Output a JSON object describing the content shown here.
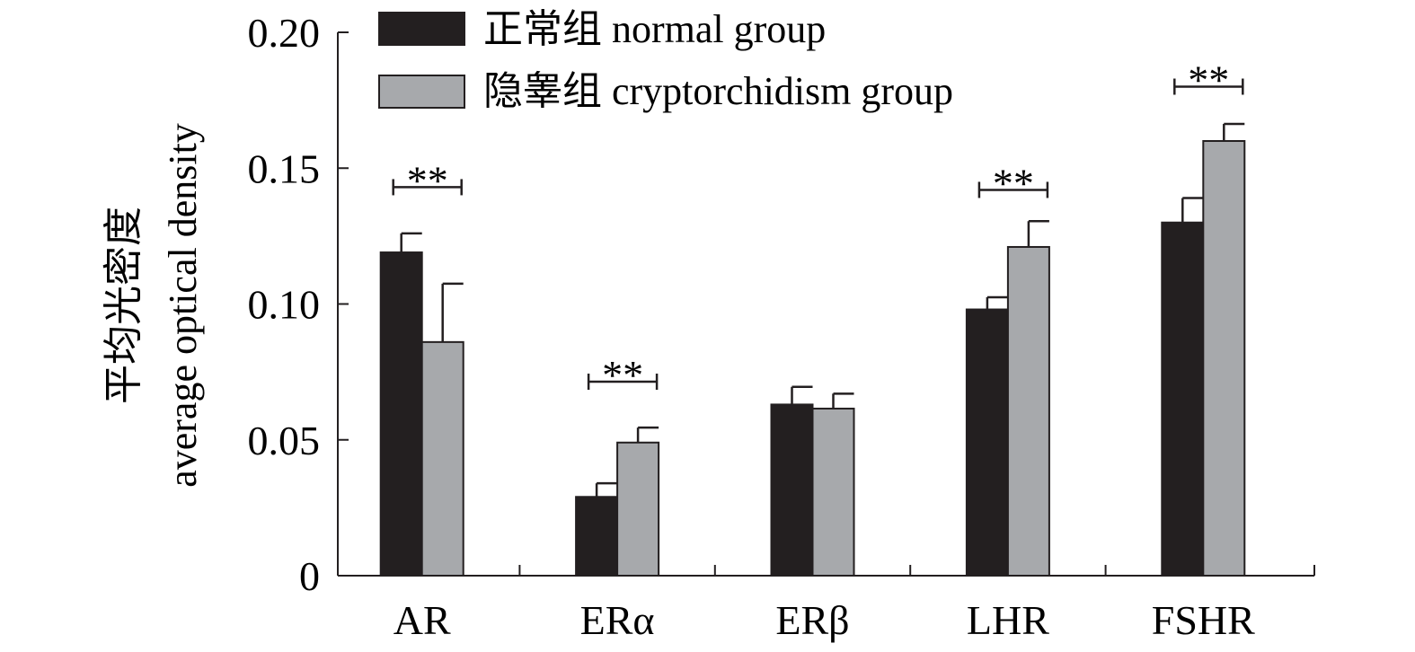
{
  "chart_data": {
    "type": "bar",
    "title": "",
    "xlabel": "",
    "ylabel": [
      "平均光密度",
      "average optical density"
    ],
    "ylim": [
      0,
      0.2
    ],
    "yticks": [
      0,
      0.05,
      0.1,
      0.15,
      0.2
    ],
    "ytick_labels": [
      "0",
      "0.05",
      "0.10",
      "0.15",
      "0.20"
    ],
    "grid": false,
    "legend_position": "top-left",
    "categories": [
      "AR",
      "ERα",
      "ERβ",
      "LHR",
      "FSHR"
    ],
    "series": [
      {
        "name": "正常组 normal group",
        "color": "#231f20",
        "values": [
          0.119,
          0.029,
          0.063,
          0.098,
          0.13
        ],
        "errors": [
          0.007,
          0.005,
          0.0065,
          0.0045,
          0.009
        ]
      },
      {
        "name": "隐睾组 cryptorchidism group",
        "color": "#a7a9ac",
        "values": [
          0.086,
          0.049,
          0.0615,
          0.121,
          0.16
        ],
        "errors": [
          0.0215,
          0.0055,
          0.0055,
          0.0095,
          0.0063
        ]
      }
    ],
    "annotations": [
      {
        "category": "AR",
        "text": "**",
        "y": 0.143
      },
      {
        "category": "ERα",
        "text": "**",
        "y": 0.0714
      },
      {
        "category": "LHR",
        "text": "**",
        "y": 0.142
      },
      {
        "category": "FSHR",
        "text": "**",
        "y": 0.18
      }
    ]
  }
}
